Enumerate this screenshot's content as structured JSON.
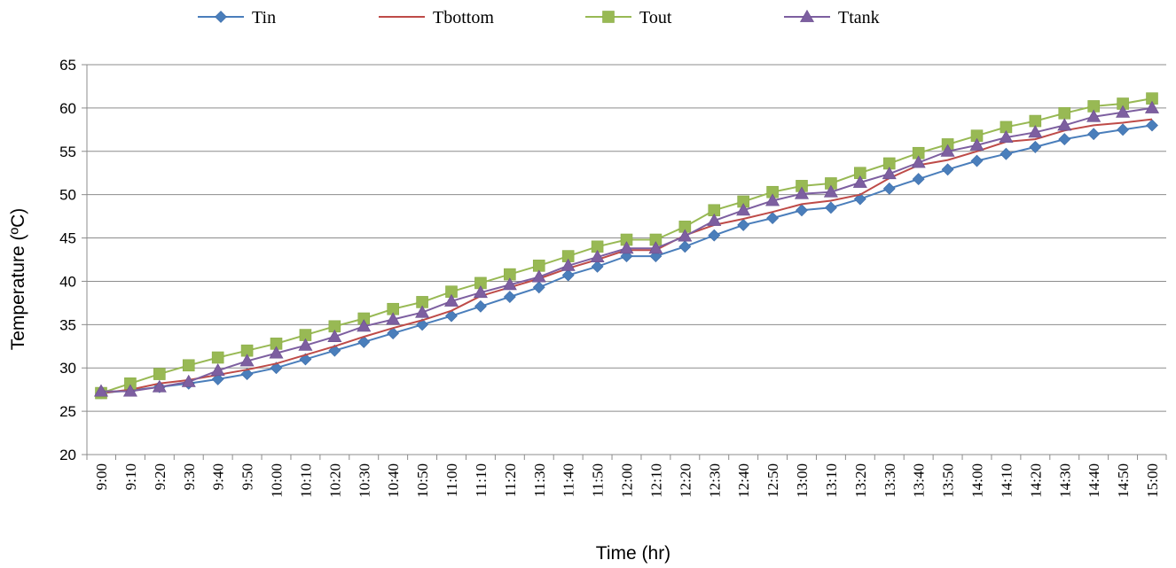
{
  "chart_data": {
    "type": "line",
    "title": "",
    "xlabel": "Time (hr)",
    "ylabel": "Temperature (ºC)",
    "ylim": [
      20,
      65
    ],
    "yticks": [
      20,
      25,
      30,
      35,
      40,
      45,
      50,
      55,
      60,
      65
    ],
    "grid": "horizontal",
    "legend_position": "top",
    "categories": [
      "9:00",
      "9:10",
      "9:20",
      "9:30",
      "9:40",
      "9:50",
      "10:00",
      "10:10",
      "10:20",
      "10:30",
      "10:40",
      "10:50",
      "11:00",
      "11:10",
      "11:20",
      "11:30",
      "11:40",
      "11:50",
      "12:00",
      "12:10",
      "12:20",
      "12:30",
      "12:40",
      "12:50",
      "13:00",
      "13:10",
      "13:20",
      "13:30",
      "13:40",
      "13:50",
      "14:00",
      "14:10",
      "14:20",
      "14:30",
      "14:40",
      "14:50",
      "15:00"
    ],
    "series": [
      {
        "name": "Tin",
        "color": "#4a7ebb",
        "marker": "diamond",
        "values": [
          27.1,
          27.4,
          27.8,
          28.2,
          28.7,
          29.3,
          30.0,
          31.0,
          32.0,
          33.0,
          34.0,
          35.0,
          36.0,
          37.1,
          38.2,
          39.3,
          40.7,
          41.7,
          42.9,
          42.9,
          44.0,
          45.3,
          46.5,
          47.3,
          48.2,
          48.5,
          49.5,
          50.7,
          51.8,
          52.9,
          53.9,
          54.7,
          55.5,
          56.4,
          57.0,
          57.5,
          58.0
        ]
      },
      {
        "name": "Tbottom",
        "color": "#be4b48",
        "marker": "none",
        "values": [
          27.1,
          27.5,
          28.2,
          28.6,
          29.2,
          29.8,
          30.5,
          31.5,
          32.5,
          33.6,
          34.6,
          35.5,
          36.6,
          38.3,
          39.3,
          40.3,
          41.5,
          42.5,
          43.6,
          43.6,
          45.3,
          46.5,
          47.2,
          48.0,
          48.9,
          49.3,
          50.0,
          51.9,
          53.4,
          54.0,
          55.0,
          56.1,
          56.4,
          57.4,
          58.0,
          58.3,
          58.7
        ]
      },
      {
        "name": "Tout",
        "color": "#98b954",
        "marker": "square",
        "values": [
          27.1,
          28.2,
          29.3,
          30.3,
          31.2,
          32.0,
          32.8,
          33.8,
          34.8,
          35.7,
          36.8,
          37.6,
          38.8,
          39.8,
          40.8,
          41.8,
          42.9,
          44.0,
          44.8,
          44.8,
          46.3,
          48.2,
          49.2,
          50.3,
          51.0,
          51.3,
          52.5,
          53.6,
          54.8,
          55.8,
          56.8,
          57.8,
          58.5,
          59.4,
          60.2,
          60.5,
          61.1
        ]
      },
      {
        "name": "Ttank",
        "color": "#7d5fa0",
        "marker": "triangle",
        "values": [
          27.3,
          27.3,
          27.8,
          28.4,
          29.7,
          30.8,
          31.7,
          32.6,
          33.6,
          34.8,
          35.6,
          36.4,
          37.7,
          38.7,
          39.6,
          40.5,
          41.8,
          42.8,
          43.8,
          43.8,
          45.2,
          47.0,
          48.2,
          49.3,
          50.1,
          50.3,
          51.4,
          52.4,
          53.7,
          55.0,
          55.7,
          56.6,
          57.2,
          58.0,
          59.0,
          59.5,
          60.0
        ]
      }
    ]
  }
}
